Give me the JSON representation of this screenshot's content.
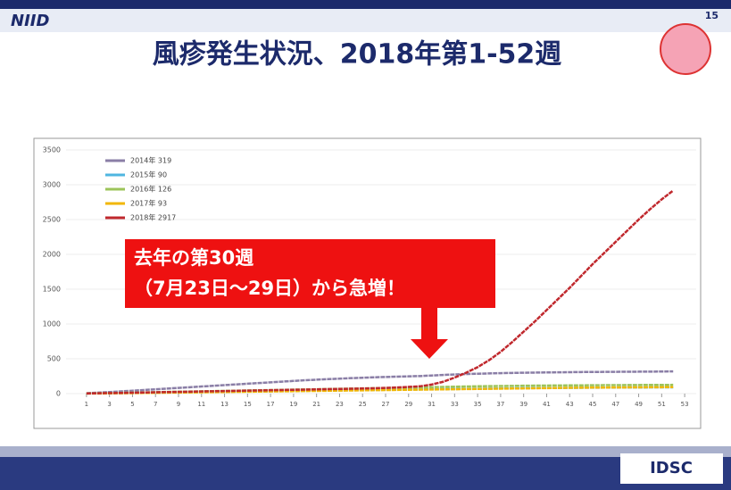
{
  "slide": {
    "logo": "NIID",
    "page_number": "15",
    "title": "風疹発生状況、2018年第1-52週",
    "footer_logo": "IDSC"
  },
  "callout": {
    "line1": "去年の第30週",
    "line2": "（7月23日～29日）から急増！"
  },
  "chart_data": {
    "type": "line",
    "x": [
      1,
      2,
      3,
      4,
      5,
      6,
      7,
      8,
      9,
      10,
      11,
      12,
      13,
      14,
      15,
      16,
      17,
      18,
      19,
      20,
      21,
      22,
      23,
      24,
      25,
      26,
      27,
      28,
      29,
      30,
      31,
      32,
      33,
      34,
      35,
      36,
      37,
      38,
      39,
      40,
      41,
      42,
      43,
      44,
      45,
      46,
      47,
      48,
      49,
      50,
      51,
      52
    ],
    "xlim": [
      0,
      54
    ],
    "xticks": [
      1,
      3,
      5,
      7,
      9,
      11,
      13,
      15,
      17,
      19,
      21,
      23,
      25,
      27,
      29,
      31,
      33,
      35,
      37,
      39,
      41,
      43,
      45,
      47,
      49,
      51,
      53
    ],
    "ylim": [
      0,
      3500
    ],
    "yticks": [
      0,
      500,
      1000,
      1500,
      2000,
      2500,
      3000,
      3500
    ],
    "grid": true,
    "legend": "upper-left",
    "series": [
      {
        "name": "2014年 319",
        "color": "#8a7ea6",
        "values": [
          6,
          14,
          22,
          32,
          42,
          52,
          62,
          72,
          82,
          92,
          102,
          112,
          122,
          132,
          142,
          152,
          162,
          172,
          182,
          192,
          200,
          208,
          215,
          222,
          228,
          234,
          239,
          244,
          248,
          252,
          260,
          268,
          275,
          281,
          286,
          290,
          294,
          297,
          300,
          302,
          304,
          306,
          308,
          310,
          311,
          312,
          313,
          314,
          315,
          316,
          317,
          319
        ]
      },
      {
        "name": "2015年 90",
        "color": "#4fb6e0",
        "values": [
          2,
          4,
          6,
          8,
          10,
          12,
          14,
          16,
          18,
          20,
          22,
          24,
          26,
          28,
          30,
          32,
          34,
          36,
          38,
          40,
          42,
          44,
          46,
          48,
          50,
          52,
          54,
          56,
          58,
          60,
          62,
          64,
          66,
          68,
          70,
          72,
          74,
          76,
          78,
          80,
          81,
          82,
          83,
          84,
          85,
          86,
          87,
          88,
          88,
          89,
          89,
          90
        ]
      },
      {
        "name": "2016年 126",
        "color": "#9cc45a",
        "values": [
          3,
          6,
          9,
          12,
          15,
          18,
          21,
          24,
          27,
          30,
          33,
          36,
          39,
          42,
          45,
          48,
          51,
          54,
          57,
          60,
          63,
          66,
          69,
          72,
          75,
          78,
          81,
          84,
          87,
          90,
          93,
          96,
          99,
          102,
          105,
          107,
          109,
          111,
          113,
          115,
          116,
          117,
          118,
          119,
          120,
          121,
          122,
          123,
          124,
          125,
          125,
          126
        ]
      },
      {
        "name": "2017年 93",
        "color": "#f2b705",
        "values": [
          1,
          2,
          3,
          5,
          7,
          9,
          11,
          13,
          15,
          17,
          19,
          21,
          23,
          25,
          27,
          29,
          31,
          33,
          35,
          37,
          39,
          41,
          43,
          45,
          47,
          49,
          51,
          53,
          55,
          57,
          59,
          61,
          63,
          65,
          67,
          69,
          71,
          73,
          75,
          77,
          79,
          81,
          83,
          85,
          86,
          87,
          88,
          89,
          90,
          91,
          92,
          93
        ]
      },
      {
        "name": "2018年 2917",
        "color": "#c0282d",
        "values": [
          2,
          5,
          8,
          10,
          13,
          16,
          19,
          22,
          25,
          28,
          31,
          34,
          37,
          40,
          43,
          46,
          49,
          52,
          55,
          58,
          61,
          64,
          67,
          70,
          73,
          77,
          82,
          88,
          96,
          105,
          130,
          170,
          230,
          300,
          380,
          480,
          600,
          740,
          890,
          1040,
          1200,
          1360,
          1520,
          1690,
          1860,
          2020,
          2180,
          2340,
          2500,
          2650,
          2790,
          2917
        ]
      }
    ]
  }
}
